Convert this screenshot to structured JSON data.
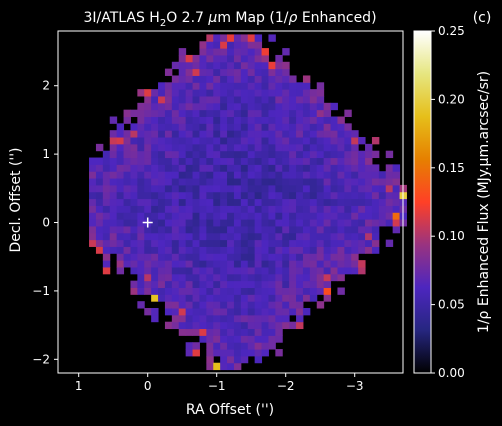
{
  "chart_data": {
    "type": "heatmap",
    "title_prefix": "3I/ATLAS H",
    "title_sub": "2",
    "title_mid": "O 2.7 ",
    "title_mu": "μ",
    "title_suffix": "m Map (1/",
    "title_rho": "ρ",
    "title_end": " Enhanced)",
    "panel_label": "(c)",
    "xlabel": "RA Offset ('')",
    "ylabel": "Decl. Offset ('')",
    "cbar_label": "1/ρ Enhanced Flux (MJy.μm.arcsec/sr)",
    "xlim": [
      1.3,
      -3.7
    ],
    "ylim": [
      -2.2,
      2.8
    ],
    "x_ticks": [
      {
        "value": 1,
        "label": "1"
      },
      {
        "value": 0,
        "label": "0"
      },
      {
        "value": -1,
        "label": "−1"
      },
      {
        "value": -2,
        "label": "−2"
      },
      {
        "value": -3,
        "label": "−3"
      }
    ],
    "y_ticks": [
      {
        "value": 2,
        "label": "2"
      },
      {
        "value": 1,
        "label": "1"
      },
      {
        "value": 0,
        "label": "0"
      },
      {
        "value": -1,
        "label": "−1"
      },
      {
        "value": -2,
        "label": "−2"
      }
    ],
    "colorbar": {
      "min": 0.0,
      "max": 0.25,
      "ticks": [
        {
          "value": 0.0,
          "label": "0.00"
        },
        {
          "value": 0.05,
          "label": "0.05"
        },
        {
          "value": 0.1,
          "label": "0.10"
        },
        {
          "value": 0.15,
          "label": "0.15"
        },
        {
          "value": 0.2,
          "label": "0.20"
        },
        {
          "value": 0.25,
          "label": "0.25"
        }
      ],
      "colormap": "CMRmap"
    },
    "grid": false,
    "nucleus_marker": {
      "x": 0,
      "y": 0,
      "symbol": "+"
    }
  }
}
